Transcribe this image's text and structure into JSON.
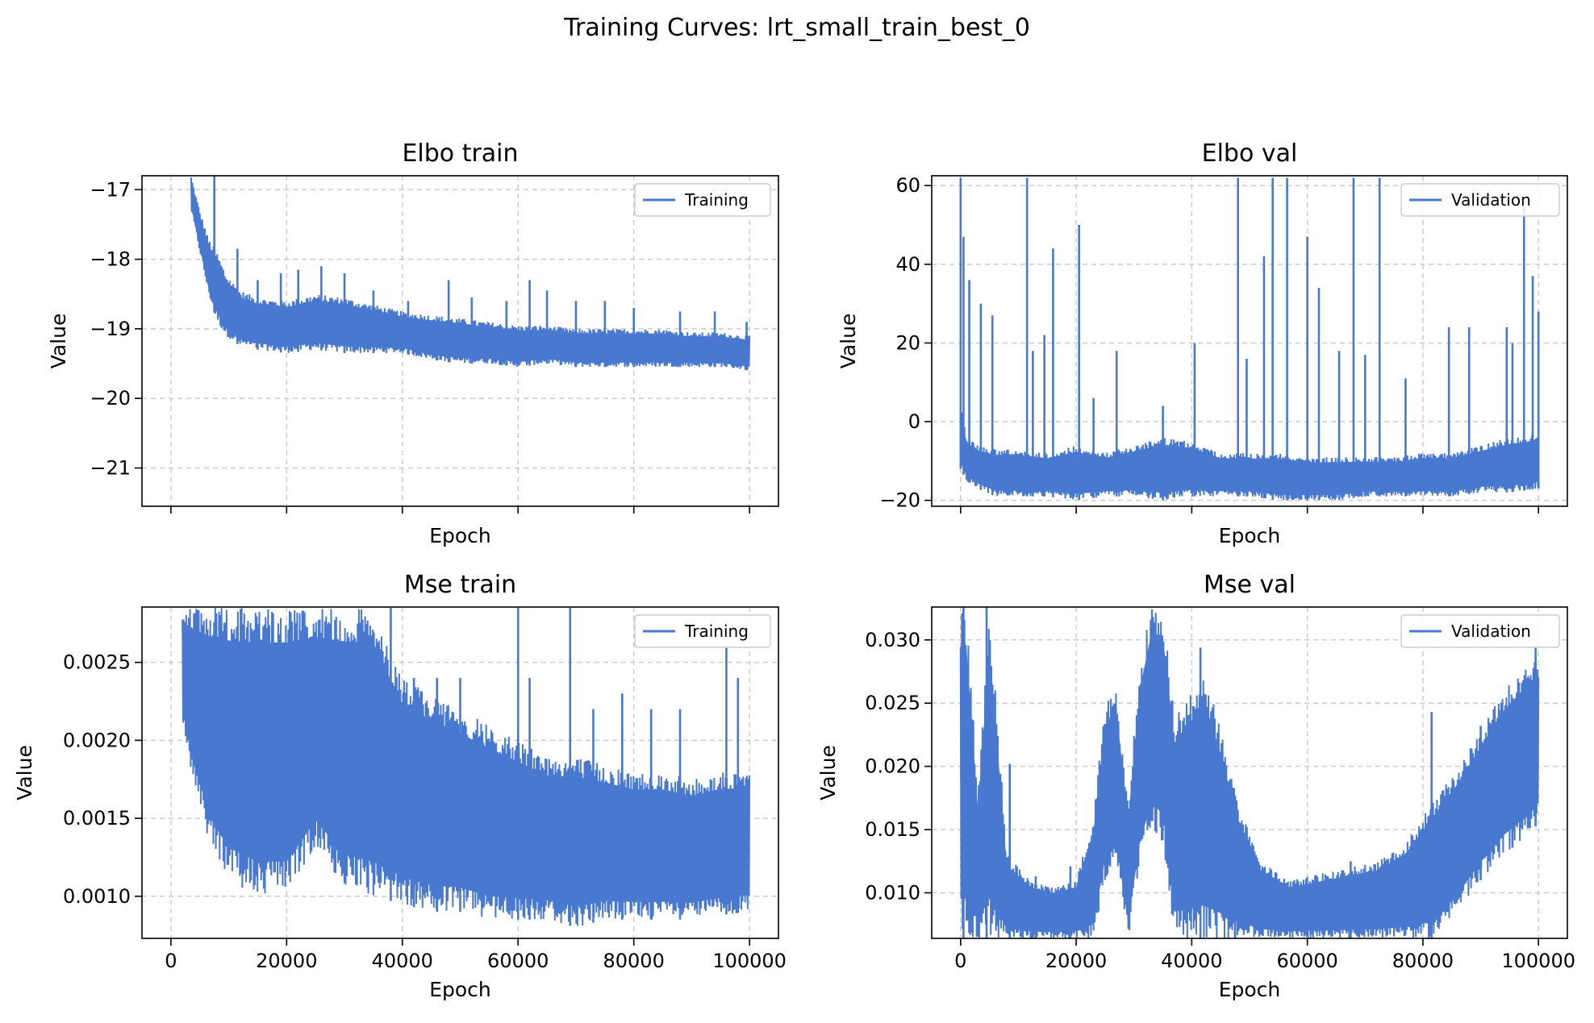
{
  "figure": {
    "title": "Training Curves: lrt_small_train_best_0",
    "line_color": "#4878cf",
    "grid_color": "#cccccc"
  },
  "chart_data": [
    {
      "type": "line",
      "title": "Elbo train",
      "xlabel": "Epoch",
      "ylabel": "Value",
      "xlim": [
        -5000,
        105000
      ],
      "ylim": [
        -21.55,
        -16.8
      ],
      "xticks": [
        0,
        20000,
        40000,
        60000,
        80000,
        100000
      ],
      "xtick_labels_visible": false,
      "yticks": [
        -21,
        -20,
        -19,
        -18,
        -17
      ],
      "ytick_labels": [
        "−21",
        "−20",
        "−19",
        "−18",
        "−17"
      ],
      "grid": true,
      "legend": {
        "label": "Training",
        "placement": "top-right"
      },
      "series": [
        {
          "name": "Training",
          "x": [
            3500,
            5000,
            6500,
            8000,
            9500,
            12000,
            15000,
            20000,
            25000,
            30000,
            35000,
            40000,
            45000,
            50000,
            55000,
            60000,
            65000,
            70000,
            75000,
            80000,
            85000,
            90000,
            95000,
            100000
          ],
          "upper": [
            -16.8,
            -17.3,
            -17.7,
            -17.9,
            -18.2,
            -18.45,
            -18.55,
            -18.6,
            -18.5,
            -18.55,
            -18.65,
            -18.75,
            -18.8,
            -18.85,
            -18.9,
            -18.95,
            -18.95,
            -19.0,
            -19.0,
            -19.0,
            -19.0,
            -19.05,
            -19.05,
            -19.1
          ],
          "lower": [
            -17.3,
            -17.9,
            -18.5,
            -18.9,
            -19.1,
            -19.25,
            -19.3,
            -19.35,
            -19.3,
            -19.35,
            -19.35,
            -19.35,
            -19.45,
            -19.5,
            -19.5,
            -19.55,
            -19.5,
            -19.55,
            -19.55,
            -19.55,
            -19.55,
            -19.55,
            -19.55,
            -19.6
          ],
          "spikes": [
            [
              7500,
              -16.8
            ],
            [
              11500,
              -17.85
            ],
            [
              15000,
              -18.3
            ],
            [
              19000,
              -18.2
            ],
            [
              22000,
              -18.15
            ],
            [
              26000,
              -18.1
            ],
            [
              30000,
              -18.2
            ],
            [
              35000,
              -18.45
            ],
            [
              41000,
              -18.6
            ],
            [
              48000,
              -18.3
            ],
            [
              52000,
              -18.55
            ],
            [
              58000,
              -18.6
            ],
            [
              62000,
              -18.3
            ],
            [
              65000,
              -18.45
            ],
            [
              70000,
              -18.6
            ],
            [
              75000,
              -18.6
            ],
            [
              80000,
              -18.7
            ],
            [
              88000,
              -18.75
            ],
            [
              94000,
              -18.75
            ],
            [
              99500,
              -18.9
            ]
          ]
        }
      ]
    },
    {
      "type": "line",
      "title": "Elbo val",
      "xlabel": "Epoch",
      "ylabel": "Value",
      "xlim": [
        -5000,
        105000
      ],
      "ylim": [
        -21.5,
        62.5
      ],
      "xticks": [
        0,
        20000,
        40000,
        60000,
        80000,
        100000
      ],
      "xtick_labels_visible": false,
      "yticks": [
        -20,
        0,
        20,
        40,
        60
      ],
      "ytick_labels": [
        "−20",
        "0",
        "20",
        "40",
        "60"
      ],
      "grid": true,
      "legend": {
        "label": "Validation",
        "placement": "top-right"
      },
      "series": [
        {
          "name": "Validation",
          "x": [
            0,
            1000,
            3000,
            6000,
            10000,
            15000,
            20000,
            25000,
            30000,
            35000,
            40000,
            45000,
            50000,
            55000,
            60000,
            65000,
            70000,
            75000,
            80000,
            85000,
            90000,
            95000,
            100000
          ],
          "upper": [
            5,
            -4,
            -6,
            -7,
            -7,
            -8,
            -6,
            -8,
            -6,
            -4,
            -5,
            -8,
            -8,
            -8,
            -9,
            -9,
            -9,
            -9,
            -8,
            -8,
            -6,
            -4,
            -3
          ],
          "lower": [
            -12,
            -15,
            -17,
            -19,
            -19,
            -19,
            -20,
            -19,
            -19,
            -20,
            -19,
            -19,
            -19,
            -20,
            -20,
            -20,
            -19,
            -19,
            -19,
            -19,
            -18,
            -18,
            -17
          ],
          "spikes": [
            [
              0,
              62
            ],
            [
              500,
              47
            ],
            [
              1500,
              36
            ],
            [
              3500,
              30
            ],
            [
              5500,
              27
            ],
            [
              11500,
              62
            ],
            [
              12500,
              18
            ],
            [
              14500,
              22
            ],
            [
              16000,
              44
            ],
            [
              20500,
              50
            ],
            [
              23000,
              6
            ],
            [
              27000,
              18
            ],
            [
              35000,
              4
            ],
            [
              40500,
              20
            ],
            [
              48000,
              62
            ],
            [
              49500,
              16
            ],
            [
              52500,
              42
            ],
            [
              54000,
              62
            ],
            [
              56500,
              62
            ],
            [
              60000,
              47
            ],
            [
              62000,
              34
            ],
            [
              65500,
              18
            ],
            [
              68000,
              62
            ],
            [
              70000,
              17
            ],
            [
              72500,
              62
            ],
            [
              77000,
              11
            ],
            [
              84500,
              24
            ],
            [
              88000,
              24
            ],
            [
              94500,
              24
            ],
            [
              95500,
              20
            ],
            [
              97500,
              55
            ],
            [
              99000,
              37
            ],
            [
              100000,
              28
            ]
          ]
        }
      ]
    },
    {
      "type": "line",
      "title": "Mse train",
      "xlabel": "Epoch",
      "ylabel": "Value",
      "xlim": [
        -5000,
        105000
      ],
      "ylim": [
        0.00073,
        0.002855
      ],
      "xticks": [
        0,
        20000,
        40000,
        60000,
        80000,
        100000
      ],
      "xtick_labels": [
        "0",
        "20000",
        "40000",
        "60000",
        "80000",
        "100000"
      ],
      "yticks": [
        0.001,
        0.0015,
        0.002,
        0.0025
      ],
      "ytick_labels": [
        "0.0010",
        "0.0015",
        "0.0020",
        "0.0025"
      ],
      "grid": true,
      "legend": {
        "label": "Training",
        "placement": "top-right"
      },
      "series": [
        {
          "name": "Training",
          "x": [
            2000,
            4000,
            7000,
            10000,
            15000,
            20000,
            25000,
            30000,
            35000,
            40000,
            45000,
            50000,
            55000,
            60000,
            65000,
            70000,
            75000,
            80000,
            85000,
            90000,
            95000,
            100000
          ],
          "upper": [
            0.00285,
            0.00285,
            0.00285,
            0.00285,
            0.00285,
            0.00285,
            0.00285,
            0.00285,
            0.00285,
            0.0024,
            0.0023,
            0.0022,
            0.0021,
            0.002,
            0.0019,
            0.0019,
            0.00185,
            0.0018,
            0.0018,
            0.00175,
            0.0018,
            0.0018
          ],
          "lower": [
            0.0021,
            0.0017,
            0.0013,
            0.0011,
            0.001,
            0.001,
            0.0013,
            0.00105,
            0.001,
            0.00095,
            0.0009,
            0.0009,
            0.00085,
            0.00085,
            0.00085,
            0.0008,
            0.00085,
            0.00085,
            0.00085,
            0.00085,
            0.00088,
            0.0009
          ],
          "spikes": [
            [
              38000,
              0.00285
            ],
            [
              42000,
              0.0024
            ],
            [
              46000,
              0.0024
            ],
            [
              50000,
              0.0024
            ],
            [
              60000,
              0.00285
            ],
            [
              62000,
              0.0024
            ],
            [
              69000,
              0.00285
            ],
            [
              73000,
              0.0022
            ],
            [
              78000,
              0.0023
            ],
            [
              83000,
              0.0022
            ],
            [
              88000,
              0.0022
            ],
            [
              96000,
              0.0026
            ],
            [
              98000,
              0.0024
            ]
          ]
        }
      ]
    },
    {
      "type": "line",
      "title": "Mse val",
      "xlabel": "Epoch",
      "ylabel": "Value",
      "xlim": [
        -5000,
        105000
      ],
      "ylim": [
        0.0064,
        0.0326
      ],
      "xticks": [
        0,
        20000,
        40000,
        60000,
        80000,
        100000
      ],
      "xtick_labels": [
        "0",
        "20000",
        "40000",
        "60000",
        "80000",
        "100000"
      ],
      "yticks": [
        0.01,
        0.015,
        0.02,
        0.025,
        0.03
      ],
      "ytick_labels": [
        "0.010",
        "0.015",
        "0.020",
        "0.025",
        "0.030"
      ],
      "grid": true,
      "legend": {
        "label": "Validation",
        "placement": "top-right"
      },
      "series": [
        {
          "name": "Validation",
          "x": [
            0,
            1000,
            3000,
            5000,
            8000,
            12000,
            16000,
            20000,
            23000,
            25000,
            27000,
            29000,
            31000,
            33000,
            35000,
            37000,
            39000,
            42000,
            45000,
            48000,
            52000,
            57000,
            62000,
            67000,
            72000,
            77000,
            82000,
            86000,
            90000,
            94000,
            98000,
            100000
          ],
          "upper": [
            0.0326,
            0.0326,
            0.018,
            0.0326,
            0.013,
            0.011,
            0.0105,
            0.011,
            0.016,
            0.025,
            0.026,
            0.017,
            0.028,
            0.0326,
            0.0326,
            0.024,
            0.025,
            0.028,
            0.023,
            0.017,
            0.0125,
            0.011,
            0.0115,
            0.012,
            0.0125,
            0.014,
            0.0175,
            0.02,
            0.023,
            0.026,
            0.028,
            0.029
          ],
          "lower": [
            0.0064,
            0.0064,
            0.0064,
            0.0064,
            0.0064,
            0.0064,
            0.0064,
            0.0064,
            0.0064,
            0.011,
            0.012,
            0.0064,
            0.012,
            0.015,
            0.014,
            0.0064,
            0.0064,
            0.0064,
            0.0064,
            0.0064,
            0.0064,
            0.0064,
            0.0064,
            0.0064,
            0.0064,
            0.0064,
            0.0064,
            0.0085,
            0.011,
            0.013,
            0.0145,
            0.0155
          ],
          "spikes": [
            [
              500,
              0.0326
            ],
            [
              4500,
              0.0326
            ],
            [
              8500,
              0.0202
            ],
            [
              13000,
              0.0113
            ],
            [
              19000,
              0.0121
            ],
            [
              41500,
              0.0294
            ],
            [
              47500,
              0.0177
            ],
            [
              67500,
              0.0125
            ],
            [
              81500,
              0.0243
            ],
            [
              90000,
              0.0232
            ],
            [
              95500,
              0.0239
            ],
            [
              99500,
              0.0295
            ]
          ]
        }
      ]
    }
  ]
}
